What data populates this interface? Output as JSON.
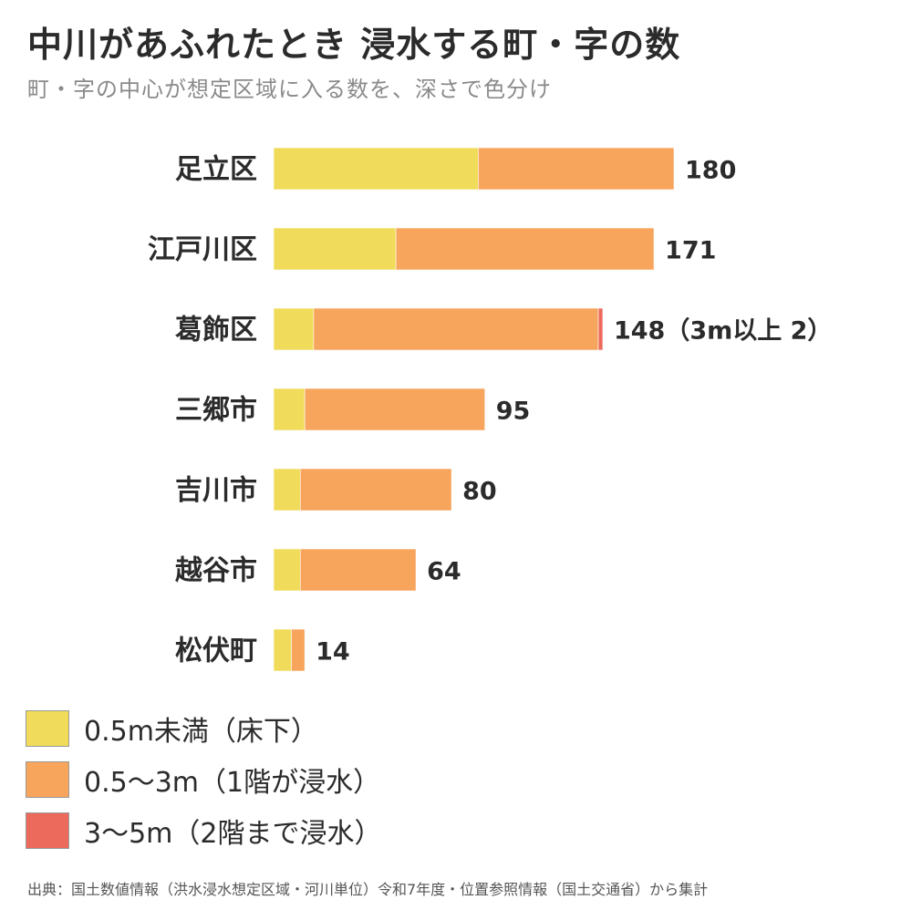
{
  "title": "中川があふれたとき 浸水する町・字の数",
  "subtitle": "町・字の中心が想定区域に入る数を、深さで色分け",
  "source": "出典：国土数値情報（洪水浸水想定区域・河川単位）令和7年度・位置参照情報（国土交通省）から集計",
  "colors": {
    "shallow": "#f0dc5a",
    "medium": "#f7a45c",
    "deep": "#ec6a5c"
  },
  "legend": [
    {
      "key": "shallow",
      "label": "0.5m未満（床下）",
      "color": "#f0dc5a"
    },
    {
      "key": "medium",
      "label": "0.5〜3m（1階が浸水）",
      "color": "#f7a45c"
    },
    {
      "key": "deep",
      "label": "3〜5m（2階まで浸水）",
      "color": "#ec6a5c"
    }
  ],
  "chart_data": {
    "type": "bar",
    "orientation": "horizontal",
    "stacked": true,
    "title": "中川があふれたとき 浸水する町・字の数",
    "subtitle": "町・字の中心が想定区域に入る数を、深さで色分け",
    "categories": [
      "足立区",
      "江戸川区",
      "葛飾区",
      "三郷市",
      "吉川市",
      "越谷市",
      "松伏町"
    ],
    "series": [
      {
        "name": "0.5m未満（床下）",
        "key": "shallow",
        "values": [
          92,
          55,
          18,
          14,
          12,
          12,
          8
        ]
      },
      {
        "name": "0.5〜3m（1階が浸水）",
        "key": "medium",
        "values": [
          88,
          116,
          128,
          81,
          68,
          52,
          6
        ]
      },
      {
        "name": "3〜5m（2階まで浸水）",
        "key": "deep",
        "values": [
          0,
          0,
          2,
          0,
          0,
          0,
          0
        ]
      }
    ],
    "totals": [
      180,
      171,
      148,
      95,
      80,
      64,
      14
    ],
    "value_labels": [
      "180",
      "171",
      "148（3m以上 2）",
      "95",
      "80",
      "64",
      "14"
    ],
    "xlim": [
      0,
      180
    ],
    "grid": false,
    "legend_position": "bottom-left"
  }
}
